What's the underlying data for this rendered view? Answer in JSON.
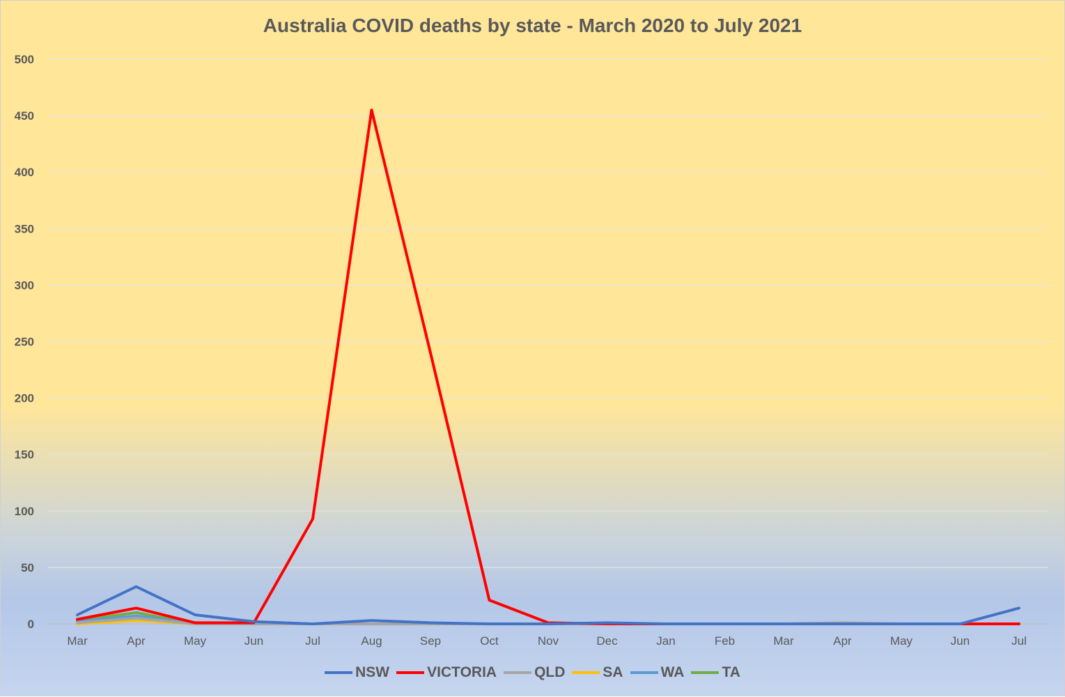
{
  "chart_data": {
    "type": "line",
    "title": "Australia COVID deaths by state - March 2020 to July 2021",
    "xlabel": "",
    "ylabel": "",
    "ylim": [
      0,
      500
    ],
    "yticks": [
      0,
      50,
      100,
      150,
      200,
      250,
      300,
      350,
      400,
      450,
      500
    ],
    "categories": [
      "Mar",
      "Apr",
      "May",
      "Jun",
      "Jul",
      "Aug",
      "Sep",
      "Oct",
      "Nov",
      "Dec",
      "Jan",
      "Feb",
      "Mar",
      "Apr",
      "May",
      "Jun",
      "Jul"
    ],
    "grid": true,
    "legend_position": "bottom",
    "series": [
      {
        "name": "NSW",
        "color": "#4472c4",
        "values": [
          8,
          33,
          8,
          2,
          0,
          3,
          1,
          0,
          0,
          1,
          0,
          0,
          0,
          0,
          0,
          0,
          14
        ]
      },
      {
        "name": "VICTORIA",
        "color": "#ff0000",
        "values": [
          4,
          14,
          1,
          1,
          93,
          455,
          240,
          21,
          1,
          0,
          0,
          0,
          0,
          0,
          0,
          0,
          0
        ]
      },
      {
        "name": "QLD",
        "color": "#a5a5a5",
        "values": [
          1,
          5,
          0,
          0,
          0,
          0,
          0,
          0,
          0,
          0,
          0,
          0,
          0,
          1,
          0,
          0,
          0
        ]
      },
      {
        "name": "SA",
        "color": "#ffc000",
        "values": [
          0,
          3,
          0,
          0,
          0,
          0,
          0,
          0,
          0,
          0,
          0,
          0,
          0,
          0,
          0,
          0,
          0
        ]
      },
      {
        "name": "WA",
        "color": "#5b9bd5",
        "values": [
          2,
          7,
          0,
          0,
          0,
          0,
          0,
          0,
          0,
          0,
          0,
          0,
          0,
          0,
          0,
          0,
          0
        ]
      },
      {
        "name": "TA",
        "color": "#70ad47",
        "values": [
          3,
          10,
          0,
          0,
          0,
          0,
          0,
          0,
          0,
          0,
          0,
          0,
          0,
          0,
          0,
          0,
          0
        ]
      }
    ]
  }
}
